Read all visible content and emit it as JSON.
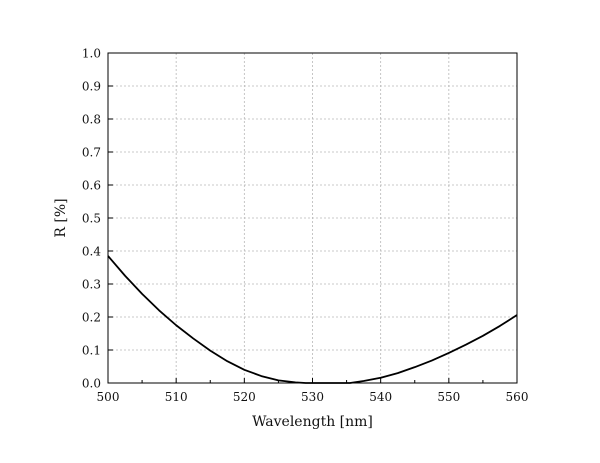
{
  "chart_data": {
    "type": "line",
    "title": "",
    "xlabel": "Wavelength [nm]",
    "ylabel": "R [%]",
    "xlim": [
      500,
      560
    ],
    "ylim": [
      0.0,
      1.0
    ],
    "xticks": [
      500,
      510,
      520,
      530,
      540,
      550,
      560
    ],
    "xtick_labels": [
      "500",
      "510",
      "520",
      "530",
      "540",
      "550",
      "560"
    ],
    "yticks": [
      0.0,
      0.1,
      0.2,
      0.3,
      0.4,
      0.5,
      0.6,
      0.7,
      0.8,
      0.9,
      1.0
    ],
    "ytick_labels": [
      "0.0",
      "0.1",
      "0.2",
      "0.3",
      "0.4",
      "0.5",
      "0.6",
      "0.7",
      "0.8",
      "0.9",
      "1.0"
    ],
    "grid": true,
    "legend": "none",
    "series": [
      {
        "color": "#000000",
        "x": [
          500,
          502.5,
          505,
          507.5,
          510,
          512.5,
          515,
          517.5,
          520,
          522.5,
          525,
          527.5,
          529,
          530,
          532,
          534,
          535.5,
          537.5,
          540,
          542.5,
          545,
          547.5,
          550,
          552.5,
          555,
          557.5,
          560
        ],
        "y": [
          0.385,
          0.325,
          0.27,
          0.22,
          0.175,
          0.135,
          0.098,
          0.066,
          0.04,
          0.021,
          0.008,
          0.002,
          0.0,
          0.0,
          0.0,
          0.0,
          0.0,
          0.006,
          0.016,
          0.03,
          0.048,
          0.068,
          0.091,
          0.116,
          0.143,
          0.173,
          0.206
        ]
      }
    ]
  }
}
